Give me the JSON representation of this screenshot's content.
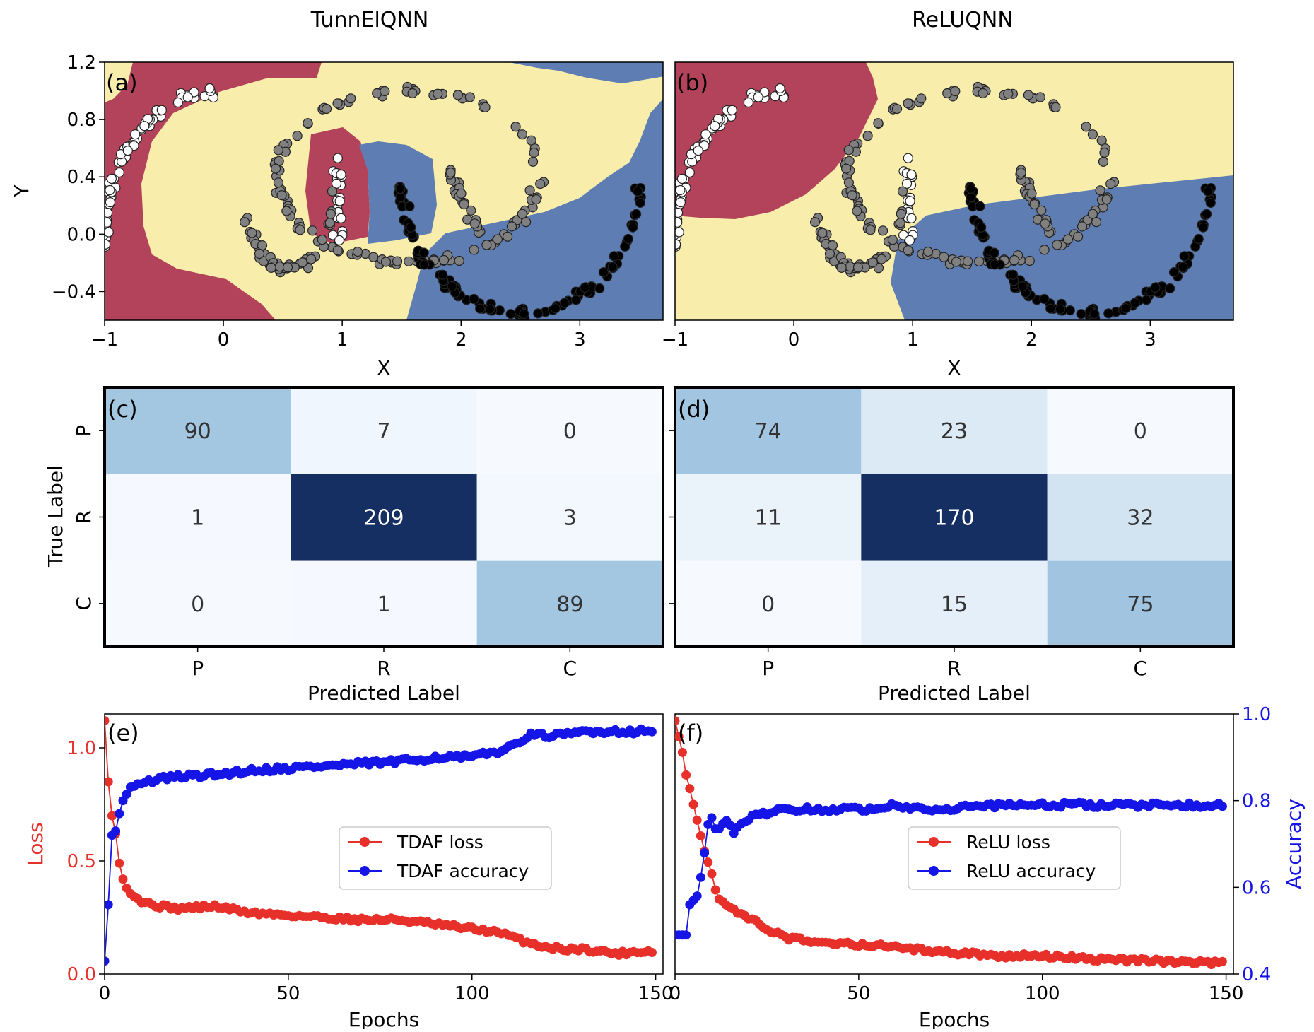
{
  "column_titles": [
    "TunnElQNN",
    "ReLUQNN"
  ],
  "colors": {
    "region_red": "#B2435A",
    "region_yellow": "#F9EDAB",
    "region_blue": "#5D7DB3",
    "point_white": "#FFFFFF",
    "point_gray": "#808080",
    "point_black": "#000000",
    "loss_red": "#E8302A",
    "accuracy_blue": "#1515E8",
    "heat_low": "#F6FAFF",
    "heat_high": "#152F63"
  },
  "chart_data": [
    {
      "id": "a",
      "panel_label": "(a)",
      "type": "scatter",
      "title": "",
      "xlabel": "X",
      "ylabel": "Y",
      "xlim": [
        -1,
        3.7
      ],
      "ylim": [
        -0.6,
        1.2
      ],
      "x_ticks": [
        "−1",
        "0",
        "1",
        "2",
        "3"
      ],
      "y_ticks": [
        "1.2",
        "0.8",
        "0.4",
        "0.0",
        "−0.4"
      ],
      "series": [
        {
          "class": "white",
          "shape": "outer arc",
          "center": [
            0,
            0
          ],
          "radius": 1.0,
          "theta_deg": [
            95,
            185
          ]
        },
        {
          "class": "white",
          "shape": "vertical band",
          "x": 0.97,
          "y_range": [
            -0.05,
            0.55
          ]
        },
        {
          "class": "gray",
          "shape": "big ring",
          "center": [
            1.55,
            0.4
          ],
          "radius_x": 1.1,
          "radius_y": 0.6
        },
        {
          "class": "gray",
          "shape": "inner arc",
          "center": [
            0.55,
            0.3
          ],
          "radius": 0.5
        },
        {
          "class": "gray",
          "shape": "right inner arc",
          "center": [
            1.65,
            0.4
          ],
          "radius": 0.15
        },
        {
          "class": "black",
          "shape": "lower arc",
          "center": [
            2.5,
            0.35
          ],
          "radius": 1.0,
          "theta_deg": [
            180,
            360
          ]
        }
      ]
    },
    {
      "id": "b",
      "panel_label": "(b)",
      "type": "scatter",
      "title": "",
      "xlabel": "X",
      "ylabel": "",
      "xlim": [
        -1,
        3.7
      ],
      "ylim": [
        -0.6,
        1.2
      ],
      "x_ticks": [
        "−1",
        "0",
        "1",
        "2",
        "3"
      ],
      "y_ticks": [],
      "series": [
        {
          "class": "white",
          "shape": "outer arc",
          "center": [
            0,
            0
          ],
          "radius": 1.0,
          "theta_deg": [
            95,
            185
          ]
        },
        {
          "class": "white",
          "shape": "vertical band",
          "x": 0.97,
          "y_range": [
            -0.05,
            0.55
          ]
        },
        {
          "class": "gray",
          "shape": "big ring",
          "center": [
            1.55,
            0.4
          ],
          "radius_x": 1.1,
          "radius_y": 0.6
        },
        {
          "class": "gray",
          "shape": "inner arc",
          "center": [
            0.55,
            0.3
          ],
          "radius": 0.5
        },
        {
          "class": "gray",
          "shape": "right inner arc",
          "center": [
            1.65,
            0.4
          ],
          "radius": 0.15
        },
        {
          "class": "black",
          "shape": "lower arc",
          "center": [
            2.5,
            0.35
          ],
          "radius": 1.0,
          "theta_deg": [
            180,
            360
          ]
        }
      ]
    },
    {
      "id": "c",
      "panel_label": "(c)",
      "type": "heatmap",
      "xlabel": "Predicted Label",
      "ylabel": "True Label",
      "row_labels": [
        "P",
        "R",
        "C"
      ],
      "col_labels": [
        "P",
        "R",
        "C"
      ],
      "matrix": [
        [
          90,
          7,
          0
        ],
        [
          1,
          209,
          3
        ],
        [
          0,
          1,
          89
        ]
      ]
    },
    {
      "id": "d",
      "panel_label": "(d)",
      "type": "heatmap",
      "xlabel": "Predicted Label",
      "ylabel": "",
      "row_labels": [
        "P",
        "R",
        "C"
      ],
      "col_labels": [
        "P",
        "R",
        "C"
      ],
      "matrix": [
        [
          74,
          23,
          0
        ],
        [
          11,
          170,
          32
        ],
        [
          0,
          15,
          75
        ]
      ]
    },
    {
      "id": "e",
      "panel_label": "(e)",
      "type": "line",
      "xlabel": "Epochs",
      "ylabel": "Loss",
      "y2label": "",
      "xlim": [
        0,
        152
      ],
      "ylim": [
        0,
        1.15
      ],
      "y2lim": [
        0.4,
        1.0
      ],
      "x_ticks": [
        "0",
        "50",
        "100",
        "150"
      ],
      "y_ticks": [
        "0.0",
        "0.5",
        "1.0"
      ],
      "y2_ticks": [],
      "legend_position": "center-right",
      "series": [
        {
          "name": "TDAF loss",
          "axis": "left",
          "x": [
            0,
            1,
            2,
            3,
            4,
            5,
            6,
            8,
            10,
            15,
            20,
            30,
            40,
            50,
            60,
            70,
            80,
            90,
            100,
            105,
            110,
            115,
            120,
            125,
            130,
            135,
            140,
            145,
            149
          ],
          "y": [
            1.12,
            0.85,
            0.7,
            0.62,
            0.49,
            0.42,
            0.38,
            0.35,
            0.32,
            0.3,
            0.29,
            0.3,
            0.27,
            0.26,
            0.25,
            0.24,
            0.24,
            0.22,
            0.2,
            0.19,
            0.17,
            0.14,
            0.12,
            0.11,
            0.11,
            0.1,
            0.09,
            0.1,
            0.1
          ]
        },
        {
          "name": "TDAF accuracy",
          "axis": "right",
          "x": [
            0,
            1,
            2,
            3,
            4,
            5,
            7,
            10,
            15,
            20,
            30,
            40,
            50,
            60,
            70,
            80,
            90,
            100,
            105,
            110,
            115,
            120,
            125,
            130,
            135,
            140,
            145,
            149
          ],
          "y": [
            0.43,
            0.56,
            0.72,
            0.73,
            0.77,
            0.8,
            0.83,
            0.84,
            0.85,
            0.855,
            0.86,
            0.87,
            0.875,
            0.88,
            0.885,
            0.89,
            0.9,
            0.9,
            0.91,
            0.92,
            0.95,
            0.95,
            0.95,
            0.96,
            0.96,
            0.96,
            0.96,
            0.96
          ]
        }
      ]
    },
    {
      "id": "f",
      "panel_label": "(f)",
      "type": "line",
      "xlabel": "Epochs",
      "ylabel": "",
      "y2label": "Accuracy",
      "xlim": [
        0,
        152
      ],
      "ylim": [
        0,
        1.15
      ],
      "y2lim": [
        0.4,
        1.0
      ],
      "x_ticks": [
        "0",
        "50",
        "100",
        "150"
      ],
      "y_ticks": [],
      "y2_ticks": [
        "0.4",
        "0.6",
        "0.8",
        "1.0"
      ],
      "legend_position": "center-right",
      "series": [
        {
          "name": "ReLU loss",
          "axis": "left",
          "x": [
            0,
            1,
            2,
            3,
            4,
            5,
            6,
            7,
            8,
            9,
            10,
            11,
            12,
            14,
            16,
            20,
            25,
            30,
            40,
            50,
            60,
            70,
            80,
            90,
            100,
            110,
            120,
            130,
            140,
            149
          ],
          "y": [
            1.12,
            1.05,
            0.98,
            0.88,
            0.82,
            0.75,
            0.68,
            0.62,
            0.55,
            0.5,
            0.44,
            0.38,
            0.34,
            0.3,
            0.28,
            0.25,
            0.2,
            0.16,
            0.14,
            0.13,
            0.12,
            0.1,
            0.09,
            0.08,
            0.08,
            0.07,
            0.06,
            0.06,
            0.05,
            0.05
          ]
        },
        {
          "name": "ReLU accuracy",
          "axis": "right",
          "x": [
            0,
            1,
            2,
            3,
            4,
            5,
            6,
            7,
            8,
            9,
            10,
            11,
            12,
            14,
            16,
            18,
            20,
            25,
            30,
            40,
            50,
            60,
            70,
            80,
            90,
            100,
            110,
            120,
            130,
            140,
            149
          ],
          "y": [
            0.49,
            0.49,
            0.49,
            0.49,
            0.56,
            0.57,
            0.58,
            0.62,
            0.68,
            0.75,
            0.76,
            0.74,
            0.74,
            0.75,
            0.73,
            0.75,
            0.76,
            0.77,
            0.78,
            0.78,
            0.78,
            0.79,
            0.78,
            0.785,
            0.79,
            0.79,
            0.79,
            0.79,
            0.79,
            0.79,
            0.79
          ]
        }
      ]
    }
  ]
}
